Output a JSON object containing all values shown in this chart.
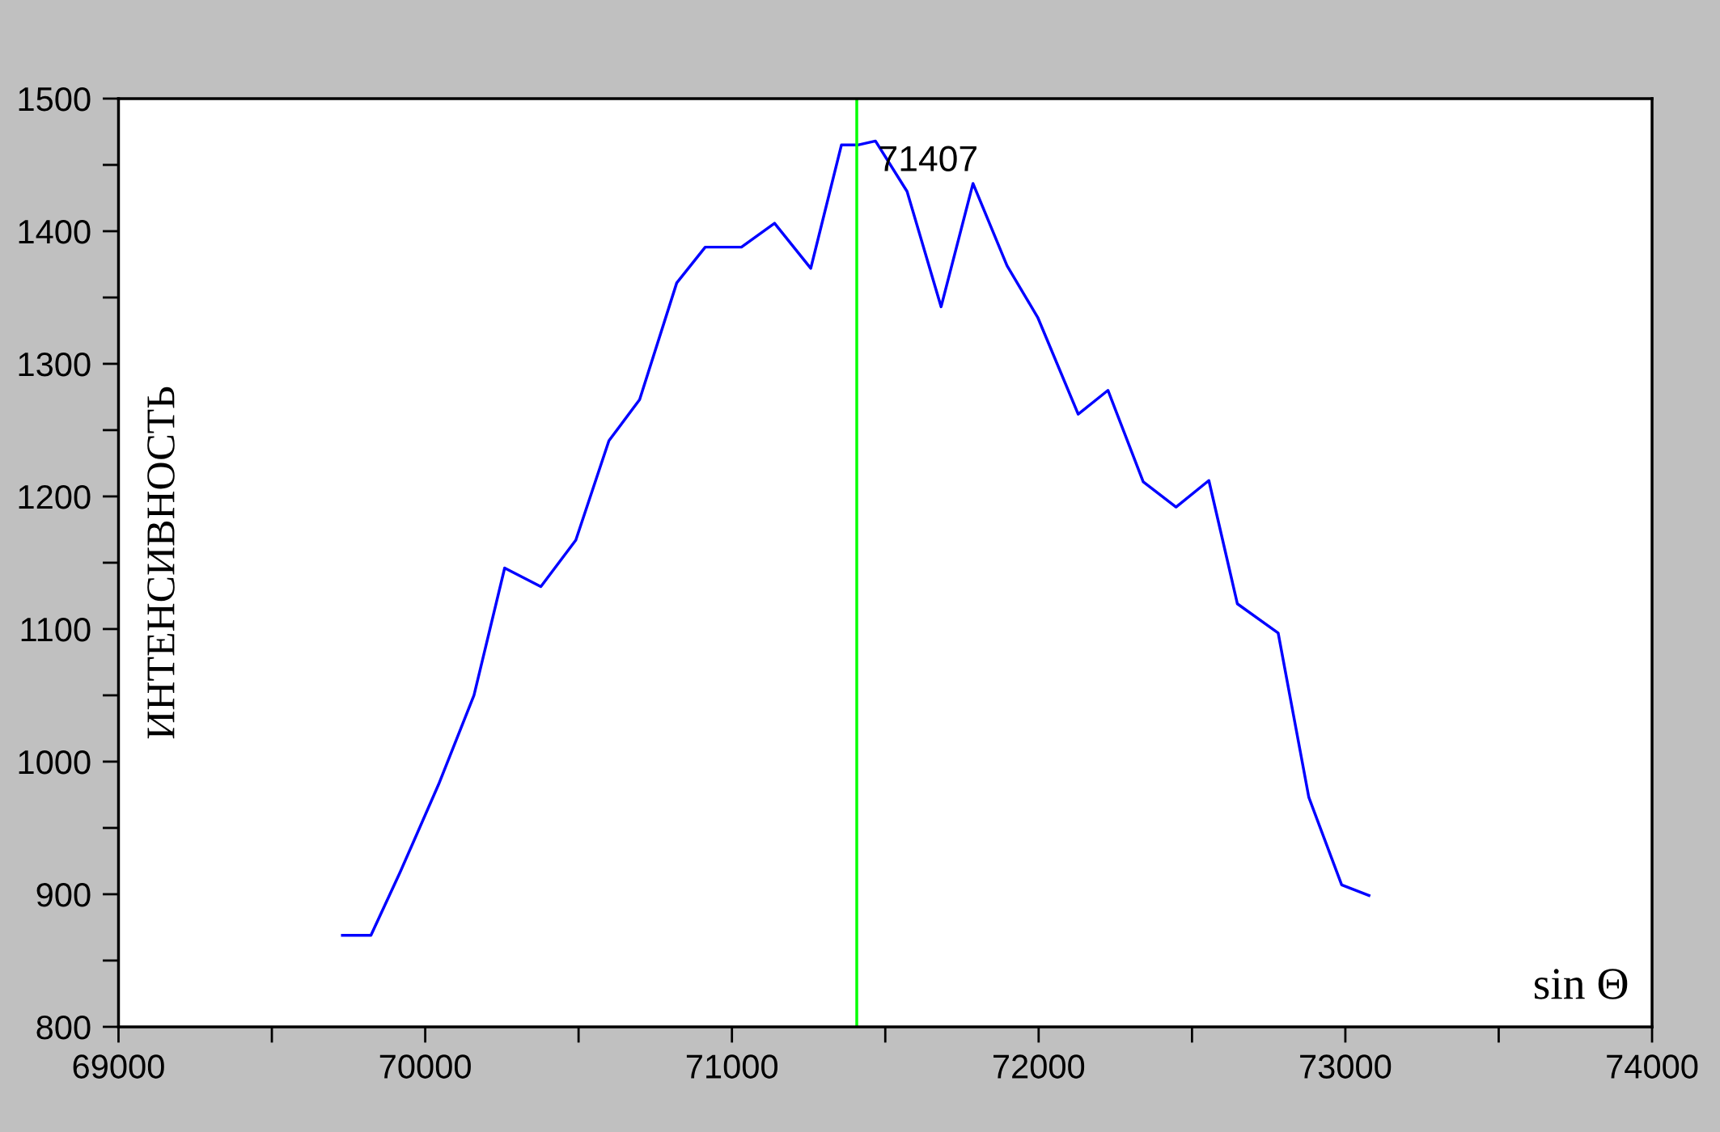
{
  "chart_data": {
    "type": "line",
    "xlabel": "sin Θ",
    "ylabel": "ИНТЕНСИВНОСТЬ",
    "x": [
      69730,
      69823,
      69919,
      70044,
      70159,
      70259,
      70377,
      70491,
      70599,
      70699,
      70820,
      70913,
      71031,
      71139,
      71257,
      71357,
      71410,
      71468,
      71571,
      71682,
      71786,
      71897,
      71997,
      72129,
      72226,
      72341,
      72448,
      72555,
      72648,
      72781,
      72881,
      72988,
      73077
    ],
    "series": [
      {
        "color": "#0000ff",
        "values": [
          869,
          869,
          917,
          983,
          1050,
          1146,
          1132,
          1167,
          1242,
          1273,
          1361,
          1388,
          1388,
          1406,
          1372,
          1465,
          1465,
          1468,
          1430,
          1343,
          1436,
          1374,
          1335,
          1262,
          1280,
          1211,
          1192,
          1212,
          1119,
          1097,
          973,
          907,
          899
        ]
      }
    ],
    "xlim": [
      69000,
      74000
    ],
    "xticks": [
      69000,
      70000,
      71000,
      72000,
      73000,
      74000
    ],
    "ylim": [
      800,
      1500
    ],
    "yticks": [
      800,
      900,
      1000,
      1100,
      1200,
      1300,
      1400,
      1500
    ],
    "ref_lines": [
      {
        "axis": "x",
        "value": 71407,
        "label": "71407",
        "color": "#00ff00"
      }
    ],
    "grid": false,
    "legend": false,
    "marker": "none",
    "line_style": "solid"
  }
}
